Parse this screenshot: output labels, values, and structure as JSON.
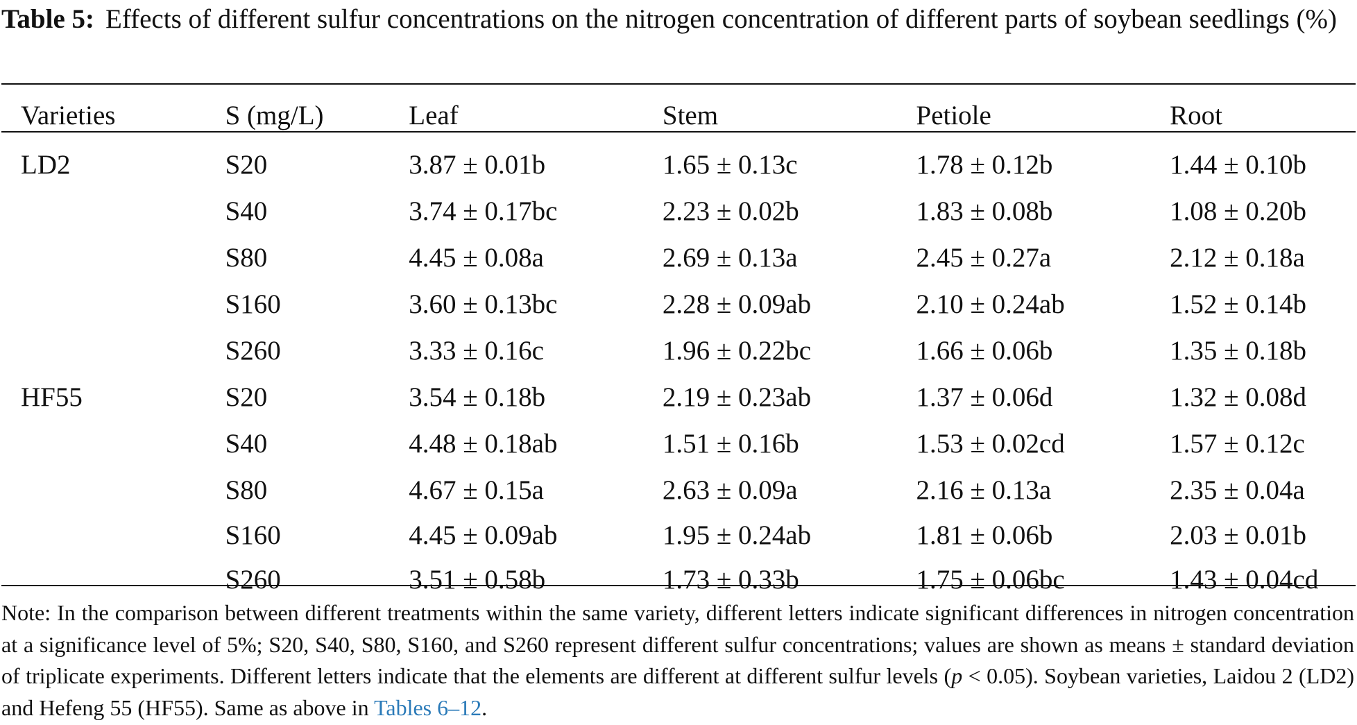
{
  "caption": {
    "label": "Table 5:",
    "text": "Effects of different sulfur concentrations on the nitrogen concentration of different parts of soybean seedlings (%)"
  },
  "table": {
    "headers": [
      "Varieties",
      "S (mg/L)",
      "Leaf",
      "Stem",
      "Petiole",
      "Root"
    ],
    "rows": [
      [
        "LD2",
        "S20",
        "3.87 ± 0.01b",
        "1.65 ± 0.13c",
        "1.78 ± 0.12b",
        "1.44 ± 0.10b"
      ],
      [
        "",
        "S40",
        "3.74 ± 0.17bc",
        "2.23 ± 0.02b",
        "1.83 ± 0.08b",
        "1.08 ± 0.20b"
      ],
      [
        "",
        "S80",
        "4.45 ± 0.08a",
        "2.69 ± 0.13a",
        "2.45 ± 0.27a",
        "2.12 ± 0.18a"
      ],
      [
        "",
        "S160",
        "3.60 ± 0.13bc",
        "2.28 ± 0.09ab",
        "2.10 ± 0.24ab",
        "1.52 ± 0.14b"
      ],
      [
        "",
        "S260",
        "3.33 ± 0.16c",
        "1.96 ± 0.22bc",
        "1.66 ± 0.06b",
        "1.35 ± 0.18b"
      ],
      [
        "HF55",
        "S20",
        "3.54 ± 0.18b",
        "2.19 ± 0.23ab",
        "1.37 ± 0.06d",
        "1.32 ± 0.08d"
      ],
      [
        "",
        "S40",
        "4.48 ± 0.18ab",
        "1.51 ± 0.16b",
        "1.53 ± 0.02cd",
        "1.57 ± 0.12c"
      ],
      [
        "",
        "S80",
        "4.67 ± 0.15a",
        "2.63 ± 0.09a",
        "2.16 ± 0.13a",
        "2.35 ± 0.04a"
      ],
      [
        "",
        "S160",
        "4.45 ± 0.09ab",
        "1.95 ± 0.24ab",
        "1.81 ± 0.06b",
        "2.03 ± 0.01b"
      ],
      [
        "",
        "S260",
        "3.51 ± 0.58b",
        "1.73 ± 0.33b",
        "1.75 ± 0.06bc",
        "1.43 ± 0.04cd"
      ]
    ]
  },
  "note": {
    "part1": "Note: In the comparison between different treatments within the same variety, different letters indicate significant differences in nitrogen concentration at a significance level of 5%; S20, S40, S80, S160, and S260 represent different sulfur concentrations; values are shown as means ± standard deviation of triplicate experiments. Different letters indicate that the elements are different at different sulfur levels (",
    "p": "p",
    "part2": " < 0.05). Soybean varieties, Laidou 2 (LD2) and Hefeng 55 (HF55). Same as above in ",
    "link": "Tables 6–12",
    "end": "."
  }
}
